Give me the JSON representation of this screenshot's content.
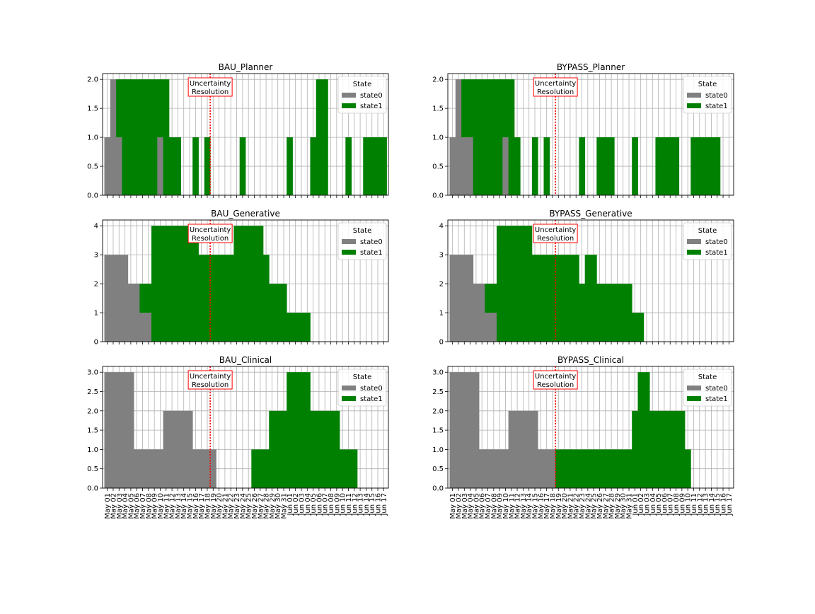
{
  "chart_data": [
    {
      "type": "bar",
      "stacked": true,
      "title": "BAU_Planner",
      "ylim": [
        0,
        2.1
      ],
      "yticks": [
        "0.0",
        "0.5",
        "1.0",
        "1.5",
        "2.0"
      ],
      "grid": true,
      "legend": {
        "title": "State",
        "placement": "upper-right"
      },
      "annotation": {
        "text": [
          "Uncertainty",
          "Resolution"
        ],
        "at": "May 19",
        "line_color": "#ff0000"
      },
      "series": [
        {
          "name": "state0",
          "color": "#808080",
          "values": [
            1,
            2,
            1,
            0,
            0,
            0,
            0,
            0,
            0,
            1,
            0,
            0,
            0,
            0,
            0,
            0,
            0,
            0,
            0,
            0,
            0,
            0,
            0,
            0,
            0,
            0,
            0,
            0,
            0,
            0,
            0,
            0,
            0,
            0,
            0,
            0,
            0,
            0,
            0,
            0,
            0,
            0,
            0,
            0,
            0,
            0,
            0,
            0
          ]
        },
        {
          "name": "state1",
          "color": "#008000",
          "values": [
            0,
            0,
            1,
            2,
            2,
            2,
            2,
            2,
            2,
            1,
            2,
            1,
            1,
            0,
            0,
            1,
            0,
            1,
            0,
            0,
            0,
            0,
            0,
            1,
            0,
            0,
            0,
            0,
            0,
            0,
            0,
            1,
            0,
            0,
            0,
            1,
            2,
            2,
            0,
            0,
            0,
            1,
            0,
            0,
            1,
            1,
            1,
            1
          ]
        }
      ]
    },
    {
      "type": "bar",
      "stacked": true,
      "title": "BYPASS_Planner",
      "ylim": [
        0,
        2.1
      ],
      "yticks": [
        "0.0",
        "0.5",
        "1.0",
        "1.5",
        "2.0"
      ],
      "grid": true,
      "legend": {
        "title": "State",
        "placement": "upper-right"
      },
      "annotation": {
        "text": [
          "Uncertainty",
          "Resolution"
        ],
        "at": "May 19",
        "line_color": "#ff0000"
      },
      "series": [
        {
          "name": "state0",
          "color": "#808080",
          "values": [
            1,
            2,
            1,
            1,
            0,
            0,
            0,
            0,
            0,
            1,
            0,
            0,
            0,
            0,
            0,
            0,
            0,
            0,
            0,
            0,
            0,
            0,
            0,
            0,
            0,
            0,
            0,
            0,
            0,
            0,
            0,
            0,
            0,
            0,
            0,
            0,
            0,
            0,
            0,
            0,
            0,
            0,
            0,
            0,
            0,
            0,
            0,
            0
          ]
        },
        {
          "name": "state1",
          "color": "#008000",
          "values": [
            0,
            0,
            1,
            1,
            2,
            2,
            2,
            2,
            2,
            1,
            2,
            1,
            0,
            0,
            1,
            0,
            1,
            0,
            0,
            0,
            0,
            0,
            1,
            0,
            0,
            1,
            1,
            1,
            0,
            0,
            0,
            1,
            0,
            0,
            0,
            1,
            1,
            1,
            1,
            0,
            0,
            1,
            1,
            1,
            1,
            1,
            0,
            0
          ]
        }
      ]
    },
    {
      "type": "bar",
      "stacked": true,
      "title": "BAU_Generative",
      "ylim": [
        0,
        4.2
      ],
      "yticks": [
        "0",
        "1",
        "2",
        "3",
        "4"
      ],
      "grid": true,
      "legend": {
        "title": "State",
        "placement": "upper-right"
      },
      "annotation": {
        "text": [
          "Uncertainty",
          "Resolution"
        ],
        "at": "May 19",
        "line_color": "#ff0000"
      },
      "series": [
        {
          "name": "state0",
          "color": "#808080",
          "values": [
            3,
            3,
            3,
            3,
            2,
            2,
            1,
            1,
            0,
            0,
            0,
            0,
            0,
            0,
            0,
            0,
            0,
            0,
            0,
            0,
            0,
            0,
            0,
            0,
            0,
            0,
            0,
            0,
            0,
            0,
            0,
            0,
            0,
            0,
            0,
            0,
            0,
            0,
            0,
            0,
            0,
            0,
            0,
            0,
            0,
            0,
            0,
            0
          ]
        },
        {
          "name": "state1",
          "color": "#008000",
          "values": [
            0,
            0,
            0,
            0,
            0,
            0,
            1,
            1,
            4,
            4,
            4,
            4,
            4,
            4,
            4,
            4,
            3,
            3,
            3,
            3,
            3,
            3,
            4,
            4,
            4,
            4,
            4,
            3,
            2,
            2,
            2,
            1,
            1,
            1,
            1,
            0,
            0,
            0,
            0,
            0,
            0,
            0,
            0,
            0,
            0,
            0,
            0,
            0
          ]
        }
      ]
    },
    {
      "type": "bar",
      "stacked": true,
      "title": "BYPASS_Generative",
      "ylim": [
        0,
        4.2
      ],
      "yticks": [
        "0",
        "1",
        "2",
        "3",
        "4"
      ],
      "grid": true,
      "legend": {
        "title": "State",
        "placement": "upper-right"
      },
      "annotation": {
        "text": [
          "Uncertainty",
          "Resolution"
        ],
        "at": "May 19",
        "line_color": "#ff0000"
      },
      "series": [
        {
          "name": "state0",
          "color": "#808080",
          "values": [
            3,
            3,
            3,
            3,
            2,
            2,
            1,
            1,
            0,
            0,
            0,
            0,
            0,
            0,
            0,
            0,
            0,
            0,
            0,
            0,
            0,
            0,
            0,
            0,
            0,
            0,
            0,
            0,
            0,
            0,
            0,
            0,
            0,
            0,
            0,
            0,
            0,
            0,
            0,
            0,
            0,
            0,
            0,
            0,
            0,
            0,
            0,
            0
          ]
        },
        {
          "name": "state1",
          "color": "#008000",
          "values": [
            0,
            0,
            0,
            0,
            0,
            0,
            1,
            1,
            4,
            4,
            4,
            4,
            4,
            4,
            3,
            3,
            3,
            3,
            3,
            3,
            3,
            3,
            2,
            3,
            3,
            2,
            2,
            2,
            2,
            2,
            2,
            1,
            1,
            0,
            0,
            0,
            0,
            0,
            0,
            0,
            0,
            0,
            0,
            0,
            0,
            0,
            0,
            0
          ]
        }
      ]
    },
    {
      "type": "bar",
      "stacked": true,
      "title": "BAU_Clinical",
      "ylim": [
        0,
        3.15
      ],
      "yticks": [
        "0.0",
        "0.5",
        "1.0",
        "1.5",
        "2.0",
        "2.5",
        "3.0"
      ],
      "grid": true,
      "legend": {
        "title": "State",
        "placement": "upper-right"
      },
      "annotation": {
        "text": [
          "Uncertainty",
          "Resolution"
        ],
        "at": "May 19",
        "line_color": "#ff0000"
      },
      "series": [
        {
          "name": "state0",
          "color": "#808080",
          "values": [
            3,
            3,
            3,
            3,
            3,
            1,
            1,
            1,
            1,
            1,
            2,
            2,
            2,
            2,
            2,
            1,
            1,
            1,
            1,
            0,
            0,
            0,
            0,
            0,
            0,
            0,
            0,
            0,
            0,
            0,
            0,
            0,
            0,
            0,
            0,
            0,
            0,
            0,
            0,
            0,
            0,
            0,
            0,
            0,
            0,
            0,
            0,
            0
          ]
        },
        {
          "name": "state1",
          "color": "#008000",
          "values": [
            0,
            0,
            0,
            0,
            0,
            0,
            0,
            0,
            0,
            0,
            0,
            0,
            0,
            0,
            0,
            0,
            0,
            0,
            0,
            0,
            0,
            0,
            0,
            0,
            0,
            1,
            1,
            1,
            2,
            2,
            2,
            3,
            3,
            3,
            3,
            2,
            2,
            2,
            2,
            2,
            1,
            1,
            1,
            0,
            0,
            0,
            0,
            0
          ]
        }
      ]
    },
    {
      "type": "bar",
      "stacked": true,
      "title": "BYPASS_Clinical",
      "ylim": [
        0,
        3.15
      ],
      "yticks": [
        "0.0",
        "0.5",
        "1.0",
        "1.5",
        "2.0",
        "2.5",
        "3.0"
      ],
      "grid": true,
      "legend": {
        "title": "State",
        "placement": "upper-right"
      },
      "annotation": {
        "text": [
          "Uncertainty",
          "Resolution"
        ],
        "at": "May 19",
        "line_color": "#ff0000"
      },
      "series": [
        {
          "name": "state0",
          "color": "#808080",
          "values": [
            3,
            3,
            3,
            3,
            3,
            1,
            1,
            1,
            1,
            1,
            2,
            2,
            2,
            2,
            2,
            1,
            1,
            1,
            0,
            0,
            0,
            0,
            0,
            0,
            0,
            0,
            0,
            0,
            0,
            0,
            0,
            0,
            0,
            0,
            0,
            0,
            0,
            0,
            0,
            0,
            0,
            0,
            0,
            0,
            0,
            0,
            0,
            0
          ]
        },
        {
          "name": "state1",
          "color": "#008000",
          "values": [
            0,
            0,
            0,
            0,
            0,
            0,
            0,
            0,
            0,
            0,
            0,
            0,
            0,
            0,
            0,
            0,
            0,
            0,
            1,
            1,
            1,
            1,
            1,
            1,
            1,
            1,
            1,
            1,
            1,
            1,
            1,
            2,
            3,
            3,
            2,
            2,
            2,
            2,
            2,
            2,
            1,
            0,
            0,
            0,
            0,
            0,
            0,
            0
          ]
        }
      ]
    }
  ],
  "x_tick_labels": [
    "May 01",
    "May 02",
    "May 03",
    "May 04",
    "May 05",
    "May 06",
    "May 07",
    "May 08",
    "May 09",
    "May 10",
    "May 11",
    "May 12",
    "May 13",
    "May 14",
    "May 15",
    "May 16",
    "May 17",
    "May 18",
    "May 19",
    "May 20",
    "May 21",
    "May 22",
    "May 23",
    "May 24",
    "May 25",
    "May 26",
    "May 27",
    "May 28",
    "May 29",
    "May 30",
    "May 31",
    "Jun 01",
    "Jun 02",
    "Jun 03",
    "Jun 04",
    "Jun 05",
    "Jun 06",
    "Jun 07",
    "Jun 08",
    "Jun 09",
    "Jun 10",
    "Jun 11",
    "Jun 12",
    "Jun 13",
    "Jun 14",
    "Jun 15",
    "Jun 16",
    "Jun 17"
  ]
}
